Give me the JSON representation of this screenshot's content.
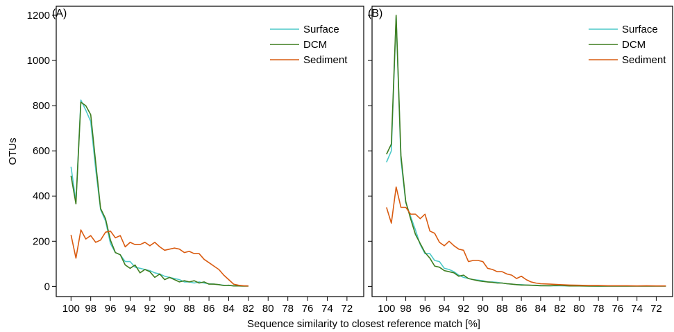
{
  "ylabel": "OTUs",
  "xlabel": "Sequence similarity to closest reference match [%]",
  "chart_data": [
    {
      "type": "line",
      "panel_label": "(A)",
      "xlim": [
        101.5,
        70.3
      ],
      "ylim": [
        -45,
        1240
      ],
      "x_ticks": [
        100,
        98,
        96,
        94,
        92,
        90,
        88,
        86,
        84,
        82,
        80,
        78,
        76,
        74,
        72
      ],
      "y_ticks": [
        0,
        200,
        400,
        600,
        800,
        1000,
        1200
      ],
      "legend_position": "top-right",
      "series": [
        {
          "name": "Surface",
          "color": "#4cc9c9",
          "x": [
            100,
            99.5,
            99,
            98.5,
            98,
            97.5,
            97,
            96.5,
            96,
            95.5,
            95,
            94.5,
            94,
            93.5,
            93,
            92.5,
            92,
            91.5,
            91,
            90.5,
            90,
            89.5,
            89,
            88.5,
            88,
            87.5,
            87,
            86.5,
            86,
            85.5,
            85,
            84.5,
            84,
            83.5,
            83,
            82.5,
            82
          ],
          "y": [
            530,
            375,
            825,
            780,
            730,
            520,
            340,
            290,
            190,
            150,
            140,
            110,
            110,
            85,
            80,
            75,
            70,
            60,
            55,
            45,
            40,
            35,
            30,
            20,
            20,
            15,
            20,
            15,
            12,
            10,
            8,
            5,
            4,
            3,
            3,
            2,
            2
          ]
        },
        {
          "name": "DCM",
          "color": "#3e7d1f",
          "x": [
            100,
            99.5,
            99,
            98.5,
            98,
            97.5,
            97,
            96.5,
            96,
            95.5,
            95,
            94.5,
            94,
            93.5,
            93,
            92.5,
            92,
            91.5,
            91,
            90.5,
            90,
            89.5,
            89,
            88.5,
            88,
            87.5,
            87,
            86.5,
            86,
            85.5,
            85,
            84.5,
            84,
            83.5,
            83,
            82.5,
            82
          ],
          "y": [
            490,
            365,
            815,
            800,
            760,
            550,
            345,
            300,
            205,
            150,
            140,
            95,
            80,
            95,
            60,
            75,
            65,
            40,
            55,
            30,
            40,
            30,
            20,
            25,
            20,
            25,
            15,
            20,
            10,
            10,
            8,
            4,
            5,
            2,
            2,
            1,
            1
          ]
        },
        {
          "name": "Sediment",
          "color": "#d95b10",
          "x": [
            100,
            99.5,
            99,
            98.5,
            98,
            97.5,
            97,
            96.5,
            96,
            95.5,
            95,
            94.5,
            94,
            93.5,
            93,
            92.5,
            92,
            91.5,
            91,
            90.5,
            90,
            89.5,
            89,
            88.5,
            88,
            87.5,
            87,
            86.5,
            86,
            85.5,
            85,
            84.5,
            84,
            83.5,
            83,
            82.5,
            82
          ],
          "y": [
            228,
            125,
            250,
            210,
            225,
            195,
            205,
            240,
            245,
            215,
            225,
            175,
            195,
            185,
            185,
            195,
            180,
            195,
            175,
            160,
            165,
            170,
            165,
            150,
            155,
            145,
            145,
            120,
            105,
            90,
            75,
            50,
            30,
            10,
            5,
            3,
            2
          ]
        }
      ]
    },
    {
      "type": "line",
      "panel_label": "(B)",
      "xlim": [
        101.5,
        70.3
      ],
      "ylim": [
        -45,
        1240
      ],
      "x_ticks": [
        100,
        98,
        96,
        94,
        92,
        90,
        88,
        86,
        84,
        82,
        80,
        78,
        76,
        74,
        72
      ],
      "y_ticks": [
        0,
        200,
        400,
        600,
        800,
        1000,
        1200
      ],
      "legend_position": "top-right",
      "series": [
        {
          "name": "Surface",
          "color": "#4cc9c9",
          "x": [
            100,
            99.5,
            99,
            98.5,
            98,
            97.5,
            97,
            96.5,
            96,
            95.5,
            95,
            94.5,
            94,
            93.5,
            93,
            92.5,
            92,
            91.5,
            91,
            90.5,
            90,
            89.5,
            89,
            88.5,
            88,
            87.5,
            87,
            86.5,
            86,
            85.5,
            85,
            84.5,
            84,
            83,
            82,
            81,
            80,
            79,
            78,
            77,
            76,
            75,
            74,
            73,
            72,
            71
          ],
          "y": [
            550,
            600,
            1195,
            560,
            370,
            310,
            250,
            185,
            145,
            145,
            115,
            110,
            80,
            75,
            65,
            50,
            40,
            35,
            30,
            28,
            25,
            20,
            20,
            18,
            15,
            12,
            10,
            8,
            8,
            6,
            5,
            5,
            4,
            3,
            3,
            2,
            2,
            2,
            1,
            1,
            1,
            1,
            1,
            1,
            1,
            1
          ]
        },
        {
          "name": "DCM",
          "color": "#3e7d1f",
          "x": [
            100,
            99.5,
            99,
            98.5,
            98,
            97.5,
            97,
            96.5,
            96,
            95.5,
            95,
            94.5,
            94,
            93.5,
            93,
            92.5,
            92,
            91.5,
            91,
            90.5,
            90,
            89.5,
            89,
            88.5,
            88,
            87.5,
            87,
            86.5,
            86,
            85.5,
            85,
            84.5,
            84,
            83,
            82,
            81,
            80,
            79,
            78,
            77,
            76,
            75,
            74,
            73,
            72,
            71
          ],
          "y": [
            585,
            630,
            1200,
            580,
            375,
            300,
            230,
            190,
            150,
            125,
            90,
            85,
            70,
            65,
            60,
            45,
            50,
            35,
            30,
            25,
            22,
            20,
            18,
            15,
            15,
            12,
            10,
            8,
            6,
            6,
            5,
            4,
            3,
            3,
            5,
            2,
            2,
            1,
            1,
            1,
            1,
            1,
            1,
            1,
            1,
            1
          ]
        },
        {
          "name": "Sediment",
          "color": "#d95b10",
          "x": [
            100,
            99.5,
            99,
            98.5,
            98,
            97.5,
            97,
            96.5,
            96,
            95.5,
            95,
            94.5,
            94,
            93.5,
            93,
            92.5,
            92,
            91.5,
            91,
            90.5,
            90,
            89.5,
            89,
            88.5,
            88,
            87.5,
            87,
            86.5,
            86,
            85.5,
            85,
            84.5,
            84,
            83,
            82,
            81,
            80,
            79,
            78,
            77,
            76,
            75,
            74,
            73,
            72,
            71
          ],
          "y": [
            350,
            280,
            440,
            350,
            350,
            320,
            320,
            300,
            320,
            245,
            235,
            195,
            180,
            200,
            180,
            165,
            160,
            110,
            115,
            115,
            110,
            80,
            75,
            65,
            65,
            55,
            50,
            35,
            45,
            30,
            20,
            15,
            12,
            10,
            8,
            6,
            5,
            4,
            4,
            3,
            3,
            3,
            2,
            3,
            2,
            2
          ]
        }
      ]
    }
  ]
}
